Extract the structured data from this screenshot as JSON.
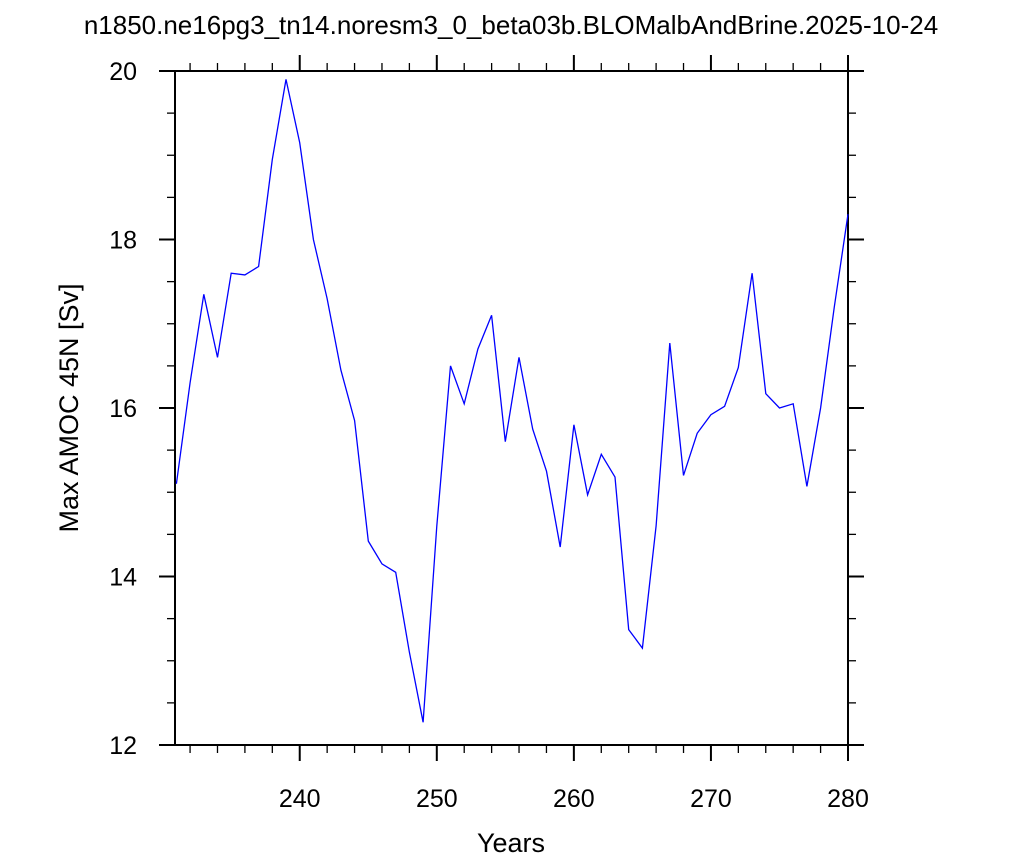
{
  "chart_data": {
    "type": "line",
    "title": "n1850.ne16pg3_tn14.noresm3_0_beta03b.BLOMalbAndBrine.2025-10-24",
    "xlabel": "Years",
    "ylabel": "Max AMOC 45N [Sv]",
    "xlim": [
      230.9,
      280
    ],
    "ylim": [
      12,
      20
    ],
    "x_ticks": [
      240,
      250,
      260,
      270,
      280
    ],
    "y_ticks": [
      12,
      14,
      16,
      18,
      20
    ],
    "x_tick_labels": [
      "240",
      "250",
      "260",
      "270",
      "280"
    ],
    "y_tick_labels": [
      "12",
      "14",
      "16",
      "18",
      "20"
    ],
    "grid": false,
    "legend": "none",
    "line_color": "#0000ff",
    "series": [
      {
        "x": [
          231,
          232,
          233,
          234,
          235,
          236,
          237,
          238,
          239,
          240,
          241,
          242,
          243,
          244,
          245,
          246,
          247,
          248,
          249,
          250,
          251,
          252,
          253,
          254,
          255,
          256,
          257,
          258,
          259,
          260,
          261,
          262,
          263,
          264,
          265,
          266,
          267,
          268,
          269,
          270,
          271,
          272,
          273,
          274,
          275,
          276,
          277,
          278,
          279,
          280
        ],
        "values": [
          15.1,
          16.3,
          17.35,
          16.6,
          17.6,
          17.58,
          17.68,
          18.95,
          19.9,
          19.15,
          18.0,
          17.3,
          16.45,
          15.85,
          14.42,
          14.15,
          14.05,
          13.1,
          12.27,
          14.6,
          16.5,
          16.05,
          16.7,
          17.1,
          15.6,
          16.6,
          15.75,
          15.25,
          14.35,
          15.8,
          14.97,
          15.45,
          15.18,
          13.37,
          13.15,
          14.6,
          16.77,
          15.2,
          15.7,
          15.92,
          16.02,
          16.48,
          17.6,
          16.17,
          16.0,
          16.05,
          15.07,
          16.0,
          17.2,
          18.3
        ]
      }
    ]
  }
}
